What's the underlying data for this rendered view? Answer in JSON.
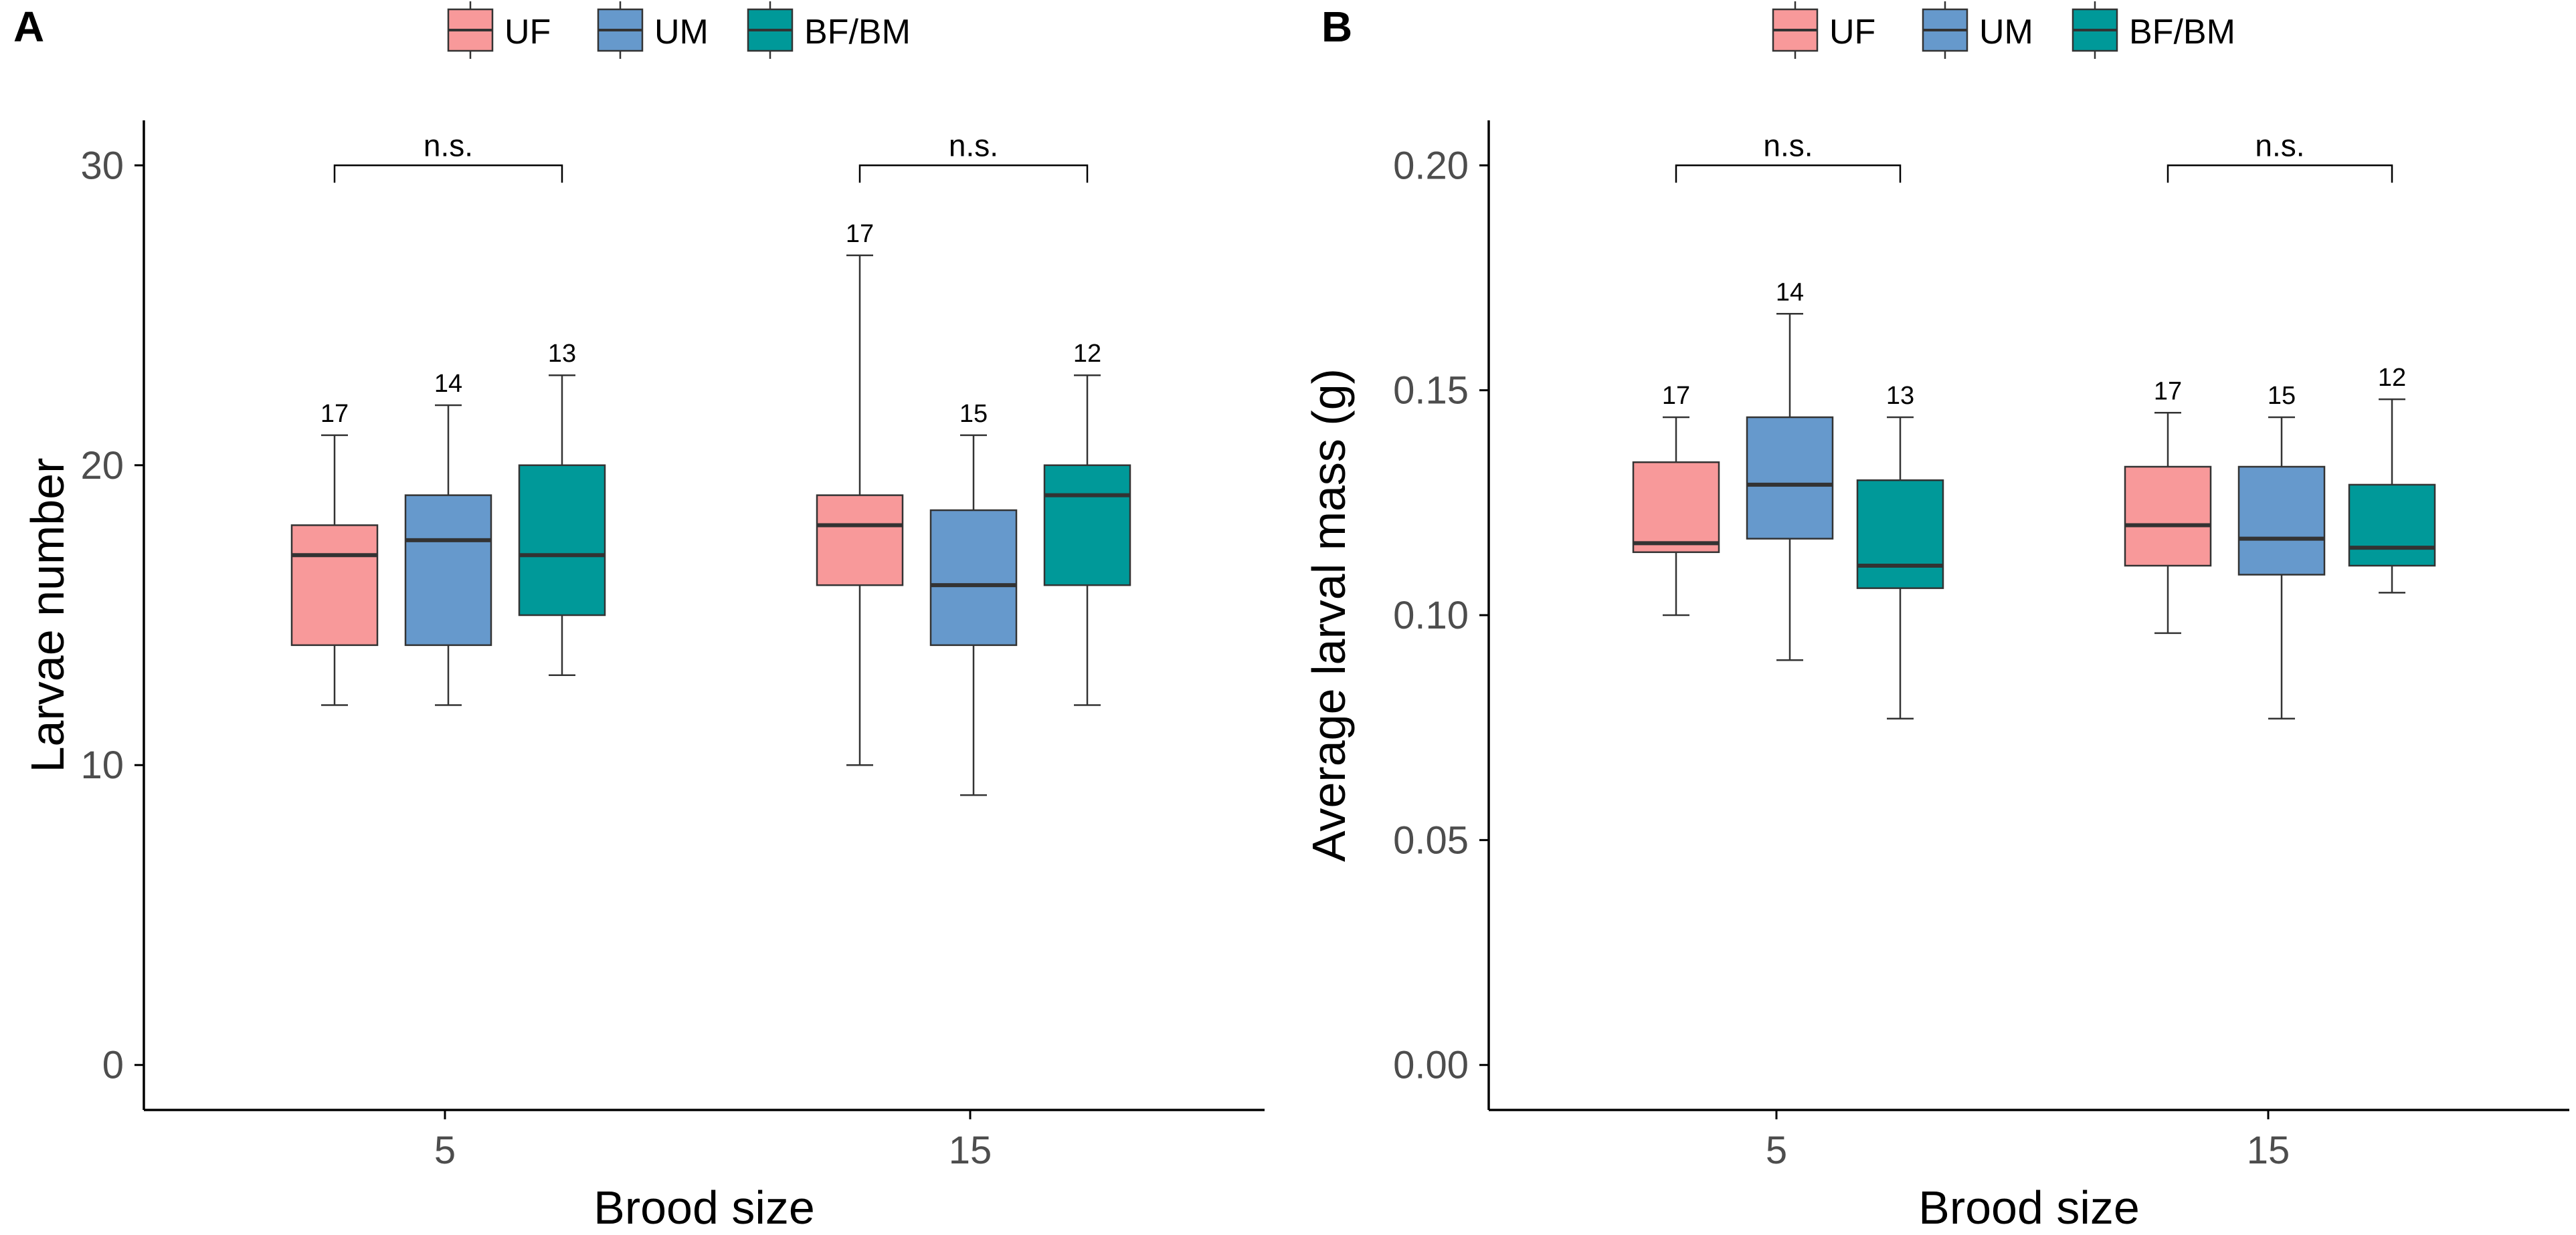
{
  "colors": {
    "UF": "#F8999A",
    "UM": "#6699CC",
    "BF/BM": "#009999",
    "axis": "#000000",
    "tick_text": "#4D4D4D",
    "median": "#333333"
  },
  "chart_data": [
    {
      "panel_label": "A",
      "type": "boxplot",
      "xlabel": "Brood size",
      "ylabel": "Larvae number",
      "ylim": [
        -1.5,
        31.5
      ],
      "yticks": [
        0,
        10,
        20,
        30
      ],
      "ytick_labels": [
        "0",
        "10",
        "20",
        "30"
      ],
      "legend": [
        "UF",
        "UM",
        "BF/BM"
      ],
      "groups": [
        {
          "label": "5",
          "significance": "n.s.",
          "bracket_y": 30,
          "boxes": [
            {
              "series": "UF",
              "min": 12,
              "q1": 14,
              "median": 17,
              "q3": 18,
              "max": 21,
              "n": "17"
            },
            {
              "series": "UM",
              "min": 12,
              "q1": 14,
              "median": 17.5,
              "q3": 19,
              "max": 22,
              "n": "14"
            },
            {
              "series": "BF/BM",
              "min": 13,
              "q1": 15,
              "median": 17,
              "q3": 20,
              "max": 23,
              "n": "13"
            }
          ]
        },
        {
          "label": "15",
          "significance": "n.s.",
          "bracket_y": 30,
          "boxes": [
            {
              "series": "UF",
              "min": 10,
              "q1": 16,
              "median": 18,
              "q3": 19,
              "max": 27,
              "n": "17"
            },
            {
              "series": "UM",
              "min": 9,
              "q1": 14,
              "median": 16,
              "q3": 18.5,
              "max": 21,
              "n": "15"
            },
            {
              "series": "BF/BM",
              "min": 12,
              "q1": 16,
              "median": 19,
              "q3": 20,
              "max": 23,
              "n": "12"
            }
          ]
        }
      ]
    },
    {
      "panel_label": "B",
      "type": "boxplot",
      "xlabel": "Brood size",
      "ylabel": "Average larval mass (g)",
      "ylim": [
        -0.01,
        0.21
      ],
      "yticks": [
        0,
        0.05,
        0.1,
        0.15,
        0.2
      ],
      "ytick_labels": [
        "0.00",
        "0.05",
        "0.10",
        "0.15",
        "0.20"
      ],
      "legend": [
        "UF",
        "UM",
        "BF/BM"
      ],
      "groups": [
        {
          "label": "5",
          "significance": "n.s.",
          "bracket_y": 0.2,
          "boxes": [
            {
              "series": "UF",
              "min": 0.1,
              "q1": 0.114,
              "median": 0.116,
              "q3": 0.134,
              "max": 0.144,
              "n": "17"
            },
            {
              "series": "UM",
              "min": 0.09,
              "q1": 0.117,
              "median": 0.129,
              "q3": 0.144,
              "max": 0.167,
              "n": "14"
            },
            {
              "series": "BF/BM",
              "min": 0.077,
              "q1": 0.106,
              "median": 0.111,
              "q3": 0.13,
              "max": 0.144,
              "n": "13"
            }
          ]
        },
        {
          "label": "15",
          "significance": "n.s.",
          "bracket_y": 0.2,
          "boxes": [
            {
              "series": "UF",
              "min": 0.096,
              "q1": 0.111,
              "median": 0.12,
              "q3": 0.133,
              "max": 0.145,
              "n": "17"
            },
            {
              "series": "UM",
              "min": 0.077,
              "q1": 0.109,
              "median": 0.117,
              "q3": 0.133,
              "max": 0.144,
              "n": "15"
            },
            {
              "series": "BF/BM",
              "min": 0.105,
              "q1": 0.111,
              "median": 0.115,
              "q3": 0.129,
              "max": 0.148,
              "n": "12"
            }
          ]
        }
      ]
    }
  ]
}
